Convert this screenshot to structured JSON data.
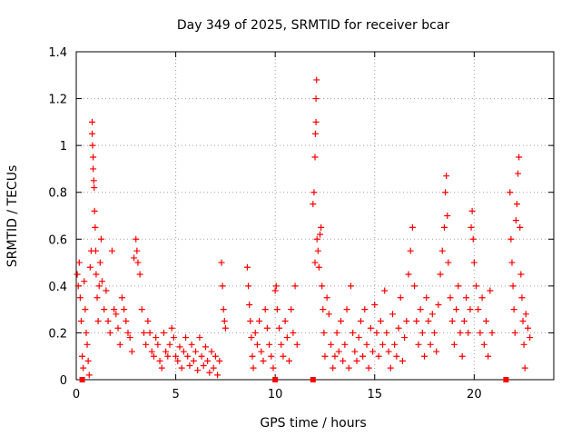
{
  "chart_data": {
    "type": "scatter",
    "title": "Day 349 of 2025, SRMTID for receiver bcar",
    "xlabel": "GPS time / hours",
    "ylabel": "SRMTID / TECUs",
    "xlim": [
      0,
      24
    ],
    "ylim": [
      0,
      1.4
    ],
    "x_ticks": [
      0,
      5,
      10,
      15,
      20
    ],
    "y_ticks": [
      0,
      0.2,
      0.4,
      0.6,
      0.8,
      1,
      1.2,
      1.4
    ],
    "x_tick_labels": [
      "0",
      "5",
      "10",
      "15",
      "20"
    ],
    "y_tick_labels": [
      "0",
      "0.2",
      "0.4",
      "0.6",
      "0.8",
      "1",
      "1.2",
      "1.4"
    ],
    "grid": true,
    "marker": "+",
    "series": [
      {
        "name": "SRMTID",
        "color": "#ff0000",
        "points": [
          [
            0.05,
            0.45
          ],
          [
            0.1,
            0.4
          ],
          [
            0.15,
            0.5
          ],
          [
            0.2,
            0.35
          ],
          [
            0.25,
            0.25
          ],
          [
            0.3,
            0.1
          ],
          [
            0.35,
            0.05
          ],
          [
            0.4,
            0.42
          ],
          [
            0.45,
            0.3
          ],
          [
            0.5,
            0.2
          ],
          [
            0.55,
            0.15
          ],
          [
            0.6,
            0.08
          ],
          [
            0.65,
            0.02
          ],
          [
            0.7,
            0.48
          ],
          [
            0.75,
            0.55
          ],
          [
            0.8,
            1.1
          ],
          [
            0.8,
            1.05
          ],
          [
            0.82,
            1.0
          ],
          [
            0.85,
            0.95
          ],
          [
            0.85,
            0.9
          ],
          [
            0.88,
            0.85
          ],
          [
            0.9,
            0.82
          ],
          [
            0.92,
            0.72
          ],
          [
            0.95,
            0.65
          ],
          [
            0.98,
            0.55
          ],
          [
            1.0,
            0.45
          ],
          [
            1.05,
            0.35
          ],
          [
            1.1,
            0.25
          ],
          [
            1.15,
            0.4
          ],
          [
            1.2,
            0.5
          ],
          [
            1.25,
            0.6
          ],
          [
            1.3,
            0.42
          ],
          [
            1.4,
            0.3
          ],
          [
            1.5,
            0.38
          ],
          [
            1.6,
            0.25
          ],
          [
            1.7,
            0.2
          ],
          [
            1.8,
            0.55
          ],
          [
            1.9,
            0.3
          ],
          [
            2.0,
            0.28
          ],
          [
            2.1,
            0.22
          ],
          [
            2.2,
            0.15
          ],
          [
            2.3,
            0.35
          ],
          [
            2.4,
            0.3
          ],
          [
            2.5,
            0.25
          ],
          [
            2.6,
            0.2
          ],
          [
            2.7,
            0.18
          ],
          [
            2.8,
            0.12
          ],
          [
            2.9,
            0.52
          ],
          [
            3.0,
            0.6
          ],
          [
            3.05,
            0.55
          ],
          [
            3.1,
            0.5
          ],
          [
            3.2,
            0.45
          ],
          [
            3.3,
            0.3
          ],
          [
            3.4,
            0.2
          ],
          [
            3.5,
            0.15
          ],
          [
            3.6,
            0.25
          ],
          [
            3.7,
            0.2
          ],
          [
            3.8,
            0.12
          ],
          [
            3.9,
            0.1
          ],
          [
            4.0,
            0.18
          ],
          [
            4.1,
            0.15
          ],
          [
            4.2,
            0.08
          ],
          [
            4.3,
            0.05
          ],
          [
            4.4,
            0.2
          ],
          [
            4.5,
            0.12
          ],
          [
            4.6,
            0.1
          ],
          [
            4.7,
            0.15
          ],
          [
            4.8,
            0.22
          ],
          [
            4.9,
            0.18
          ],
          [
            5.0,
            0.1
          ],
          [
            5.1,
            0.08
          ],
          [
            5.2,
            0.14
          ],
          [
            5.3,
            0.05
          ],
          [
            5.4,
            0.12
          ],
          [
            5.5,
            0.18
          ],
          [
            5.6,
            0.1
          ],
          [
            5.7,
            0.06
          ],
          [
            5.8,
            0.15
          ],
          [
            5.9,
            0.08
          ],
          [
            6.0,
            0.12
          ],
          [
            6.1,
            0.04
          ],
          [
            6.2,
            0.18
          ],
          [
            6.3,
            0.1
          ],
          [
            6.4,
            0.06
          ],
          [
            6.5,
            0.14
          ],
          [
            6.6,
            0.08
          ],
          [
            6.7,
            0.03
          ],
          [
            6.8,
            0.12
          ],
          [
            6.9,
            0.05
          ],
          [
            7.0,
            0.1
          ],
          [
            7.1,
            0.02
          ],
          [
            7.2,
            0.08
          ],
          [
            7.3,
            0.5
          ],
          [
            7.35,
            0.4
          ],
          [
            7.4,
            0.3
          ],
          [
            7.45,
            0.25
          ],
          [
            7.5,
            0.22
          ],
          [
            8.6,
            0.48
          ],
          [
            8.65,
            0.4
          ],
          [
            8.7,
            0.32
          ],
          [
            8.75,
            0.25
          ],
          [
            8.8,
            0.18
          ],
          [
            8.85,
            0.1
          ],
          [
            8.9,
            0.05
          ],
          [
            9.0,
            0.2
          ],
          [
            9.1,
            0.15
          ],
          [
            9.2,
            0.25
          ],
          [
            9.3,
            0.12
          ],
          [
            9.4,
            0.08
          ],
          [
            9.5,
            0.3
          ],
          [
            9.6,
            0.22
          ],
          [
            9.7,
            0.15
          ],
          [
            9.8,
            0.1
          ],
          [
            9.9,
            0.05
          ],
          [
            10.0,
            0.38
          ],
          [
            10.05,
            0.4
          ],
          [
            10.1,
            0.3
          ],
          [
            10.2,
            0.22
          ],
          [
            10.3,
            0.15
          ],
          [
            10.4,
            0.1
          ],
          [
            10.5,
            0.25
          ],
          [
            10.6,
            0.18
          ],
          [
            10.7,
            0.08
          ],
          [
            10.8,
            0.3
          ],
          [
            10.9,
            0.2
          ],
          [
            11.0,
            0.4
          ],
          [
            11.1,
            0.15
          ],
          [
            11.9,
            0.75
          ],
          [
            11.95,
            0.8
          ],
          [
            12.0,
            0.5
          ],
          [
            12.0,
            0.95
          ],
          [
            12.02,
            1.05
          ],
          [
            12.05,
            1.1
          ],
          [
            12.05,
            1.2
          ],
          [
            12.08,
            1.28
          ],
          [
            12.1,
            0.6
          ],
          [
            12.15,
            0.55
          ],
          [
            12.2,
            0.48
          ],
          [
            12.25,
            0.62
          ],
          [
            12.3,
            0.65
          ],
          [
            12.35,
            0.4
          ],
          [
            12.4,
            0.3
          ],
          [
            12.45,
            0.2
          ],
          [
            12.5,
            0.1
          ],
          [
            12.6,
            0.35
          ],
          [
            12.7,
            0.28
          ],
          [
            12.8,
            0.15
          ],
          [
            12.9,
            0.05
          ],
          [
            13.0,
            0.1
          ],
          [
            13.1,
            0.2
          ],
          [
            13.2,
            0.12
          ],
          [
            13.3,
            0.25
          ],
          [
            13.4,
            0.08
          ],
          [
            13.5,
            0.15
          ],
          [
            13.6,
            0.3
          ],
          [
            13.7,
            0.05
          ],
          [
            13.8,
            0.4
          ],
          [
            13.9,
            0.2
          ],
          [
            14.0,
            0.12
          ],
          [
            14.1,
            0.08
          ],
          [
            14.2,
            0.18
          ],
          [
            14.3,
            0.25
          ],
          [
            14.4,
            0.1
          ],
          [
            14.5,
            0.3
          ],
          [
            14.6,
            0.15
          ],
          [
            14.7,
            0.05
          ],
          [
            14.8,
            0.22
          ],
          [
            14.9,
            0.12
          ],
          [
            15.0,
            0.32
          ],
          [
            15.1,
            0.2
          ],
          [
            15.2,
            0.1
          ],
          [
            15.3,
            0.25
          ],
          [
            15.4,
            0.15
          ],
          [
            15.5,
            0.38
          ],
          [
            15.6,
            0.2
          ],
          [
            15.7,
            0.12
          ],
          [
            15.8,
            0.05
          ],
          [
            15.9,
            0.28
          ],
          [
            16.0,
            0.15
          ],
          [
            16.1,
            0.1
          ],
          [
            16.2,
            0.22
          ],
          [
            16.3,
            0.35
          ],
          [
            16.4,
            0.08
          ],
          [
            16.5,
            0.18
          ],
          [
            16.6,
            0.25
          ],
          [
            16.7,
            0.45
          ],
          [
            16.8,
            0.55
          ],
          [
            16.9,
            0.65
          ],
          [
            17.0,
            0.4
          ],
          [
            17.1,
            0.25
          ],
          [
            17.2,
            0.15
          ],
          [
            17.3,
            0.3
          ],
          [
            17.4,
            0.2
          ],
          [
            17.5,
            0.1
          ],
          [
            17.6,
            0.35
          ],
          [
            17.7,
            0.25
          ],
          [
            17.8,
            0.15
          ],
          [
            17.9,
            0.28
          ],
          [
            18.0,
            0.2
          ],
          [
            18.1,
            0.12
          ],
          [
            18.2,
            0.32
          ],
          [
            18.3,
            0.45
          ],
          [
            18.4,
            0.55
          ],
          [
            18.5,
            0.65
          ],
          [
            18.55,
            0.8
          ],
          [
            18.6,
            0.87
          ],
          [
            18.65,
            0.7
          ],
          [
            18.7,
            0.5
          ],
          [
            18.8,
            0.35
          ],
          [
            18.9,
            0.25
          ],
          [
            19.0,
            0.15
          ],
          [
            19.1,
            0.3
          ],
          [
            19.2,
            0.4
          ],
          [
            19.3,
            0.2
          ],
          [
            19.4,
            0.1
          ],
          [
            19.5,
            0.25
          ],
          [
            19.6,
            0.35
          ],
          [
            19.7,
            0.2
          ],
          [
            19.8,
            0.3
          ],
          [
            19.85,
            0.65
          ],
          [
            19.9,
            0.72
          ],
          [
            19.95,
            0.6
          ],
          [
            20.0,
            0.5
          ],
          [
            20.1,
            0.4
          ],
          [
            20.2,
            0.3
          ],
          [
            20.3,
            0.2
          ],
          [
            20.4,
            0.35
          ],
          [
            20.5,
            0.15
          ],
          [
            20.6,
            0.25
          ],
          [
            20.7,
            0.1
          ],
          [
            20.8,
            0.38
          ],
          [
            20.9,
            0.2
          ],
          [
            21.8,
            0.8
          ],
          [
            21.85,
            0.6
          ],
          [
            21.9,
            0.5
          ],
          [
            21.95,
            0.4
          ],
          [
            22.0,
            0.3
          ],
          [
            22.05,
            0.2
          ],
          [
            22.1,
            0.68
          ],
          [
            22.15,
            0.75
          ],
          [
            22.2,
            0.88
          ],
          [
            22.25,
            0.95
          ],
          [
            22.3,
            0.65
          ],
          [
            22.35,
            0.45
          ],
          [
            22.4,
            0.35
          ],
          [
            22.45,
            0.25
          ],
          [
            22.5,
            0.15
          ],
          [
            22.55,
            0.05
          ],
          [
            22.6,
            0.28
          ],
          [
            22.7,
            0.22
          ],
          [
            22.8,
            0.18
          ]
        ]
      }
    ],
    "zero_markers": [
      0.3,
      10.0,
      11.9,
      21.6
    ],
    "zero_marker_value": 0
  }
}
